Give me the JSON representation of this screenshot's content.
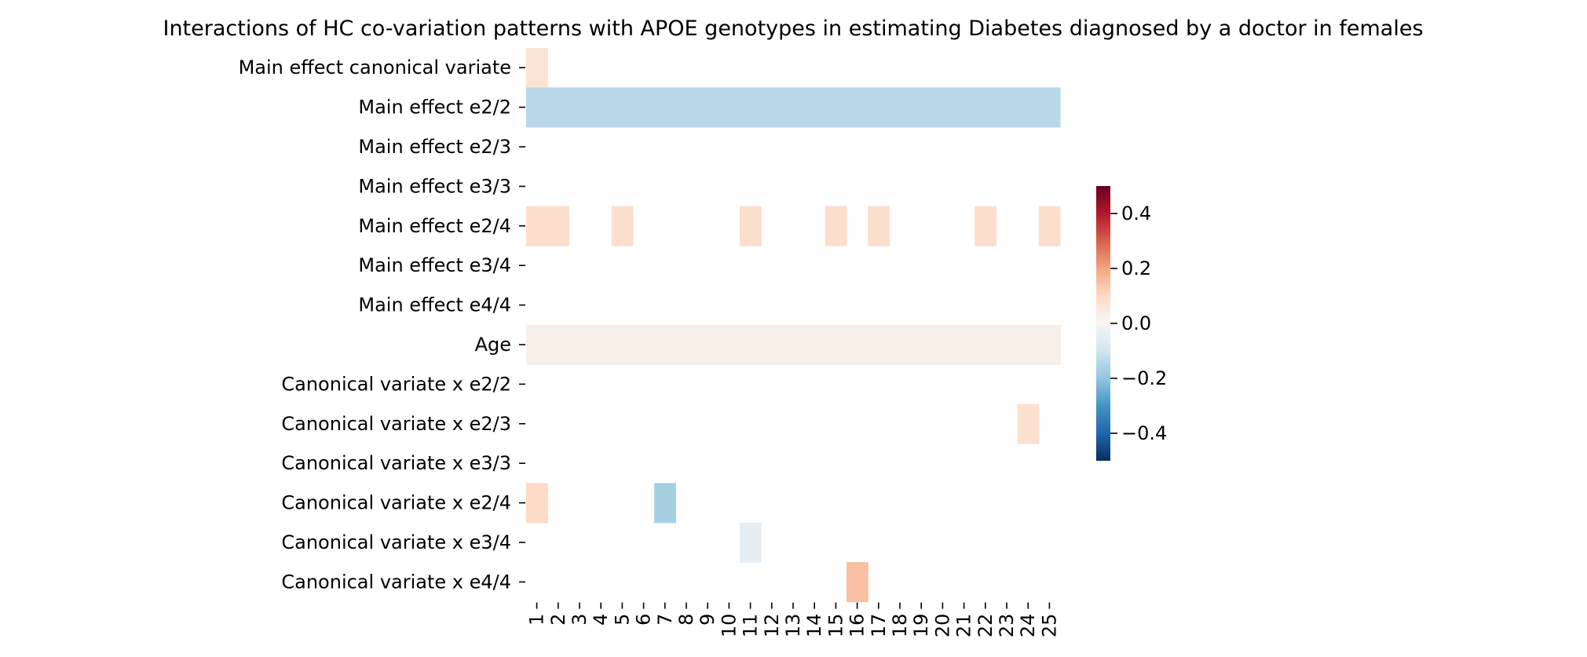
{
  "chart_data": {
    "type": "heatmap",
    "title": "Interactions of HC co-variation patterns with APOE genotypes in estimating Diabetes diagnosed by a doctor in females",
    "xlabel": "",
    "ylabel": "",
    "x_categories": [
      "1",
      "2",
      "3",
      "4",
      "5",
      "6",
      "7",
      "8",
      "9",
      "10",
      "11",
      "12",
      "13",
      "14",
      "15",
      "16",
      "17",
      "18",
      "19",
      "20",
      "21",
      "22",
      "23",
      "24",
      "25"
    ],
    "y_categories": [
      "Main effect canonical variate",
      "Main effect e2/2",
      "Main effect e2/3",
      "Main effect e3/3",
      "Main effect e2/4",
      "Main effect e3/4",
      "Main effect e4/4",
      "Age",
      "Canonical variate x e2/2",
      "Canonical variate x e2/3",
      "Canonical variate x e3/3",
      "Canonical variate x e2/4",
      "Canonical variate x e3/4",
      "Canonical variate x e4/4"
    ],
    "colormap": "RdBu_r",
    "color_range": [
      -0.5,
      0.5
    ],
    "colorbar_ticks": [
      0.4,
      0.2,
      0.0,
      -0.2,
      -0.4
    ],
    "colorbar_tick_labels": [
      "0.4",
      "0.2",
      "0.0",
      "−0.2",
      "−0.4"
    ],
    "cells": [
      {
        "row": 0,
        "col": 0,
        "value": 0.07
      },
      {
        "row": 1,
        "col": 0,
        "value": -0.14
      },
      {
        "row": 1,
        "col": 1,
        "value": -0.14
      },
      {
        "row": 1,
        "col": 2,
        "value": -0.14
      },
      {
        "row": 1,
        "col": 3,
        "value": -0.14
      },
      {
        "row": 1,
        "col": 4,
        "value": -0.14
      },
      {
        "row": 1,
        "col": 5,
        "value": -0.14
      },
      {
        "row": 1,
        "col": 6,
        "value": -0.14
      },
      {
        "row": 1,
        "col": 7,
        "value": -0.14
      },
      {
        "row": 1,
        "col": 8,
        "value": -0.14
      },
      {
        "row": 1,
        "col": 9,
        "value": -0.14
      },
      {
        "row": 1,
        "col": 10,
        "value": -0.14
      },
      {
        "row": 1,
        "col": 11,
        "value": -0.14
      },
      {
        "row": 1,
        "col": 12,
        "value": -0.14
      },
      {
        "row": 1,
        "col": 13,
        "value": -0.14
      },
      {
        "row": 1,
        "col": 14,
        "value": -0.14
      },
      {
        "row": 1,
        "col": 15,
        "value": -0.14
      },
      {
        "row": 1,
        "col": 16,
        "value": -0.14
      },
      {
        "row": 1,
        "col": 17,
        "value": -0.14
      },
      {
        "row": 1,
        "col": 18,
        "value": -0.14
      },
      {
        "row": 1,
        "col": 19,
        "value": -0.14
      },
      {
        "row": 1,
        "col": 20,
        "value": -0.14
      },
      {
        "row": 1,
        "col": 21,
        "value": -0.14
      },
      {
        "row": 1,
        "col": 22,
        "value": -0.14
      },
      {
        "row": 1,
        "col": 23,
        "value": -0.14
      },
      {
        "row": 1,
        "col": 24,
        "value": -0.14
      },
      {
        "row": 4,
        "col": 0,
        "value": 0.09
      },
      {
        "row": 4,
        "col": 1,
        "value": 0.09
      },
      {
        "row": 4,
        "col": 4,
        "value": 0.09
      },
      {
        "row": 4,
        "col": 10,
        "value": 0.09
      },
      {
        "row": 4,
        "col": 14,
        "value": 0.09
      },
      {
        "row": 4,
        "col": 16,
        "value": 0.09
      },
      {
        "row": 4,
        "col": 21,
        "value": 0.09
      },
      {
        "row": 4,
        "col": 24,
        "value": 0.09
      },
      {
        "row": 7,
        "col": 0,
        "value": 0.03
      },
      {
        "row": 7,
        "col": 1,
        "value": 0.03
      },
      {
        "row": 7,
        "col": 2,
        "value": 0.03
      },
      {
        "row": 7,
        "col": 3,
        "value": 0.03
      },
      {
        "row": 7,
        "col": 4,
        "value": 0.03
      },
      {
        "row": 7,
        "col": 5,
        "value": 0.03
      },
      {
        "row": 7,
        "col": 6,
        "value": 0.03
      },
      {
        "row": 7,
        "col": 7,
        "value": 0.03
      },
      {
        "row": 7,
        "col": 8,
        "value": 0.03
      },
      {
        "row": 7,
        "col": 9,
        "value": 0.03
      },
      {
        "row": 7,
        "col": 10,
        "value": 0.03
      },
      {
        "row": 7,
        "col": 11,
        "value": 0.03
      },
      {
        "row": 7,
        "col": 12,
        "value": 0.03
      },
      {
        "row": 7,
        "col": 13,
        "value": 0.03
      },
      {
        "row": 7,
        "col": 14,
        "value": 0.03
      },
      {
        "row": 7,
        "col": 15,
        "value": 0.03
      },
      {
        "row": 7,
        "col": 16,
        "value": 0.03
      },
      {
        "row": 7,
        "col": 17,
        "value": 0.03
      },
      {
        "row": 7,
        "col": 18,
        "value": 0.03
      },
      {
        "row": 7,
        "col": 19,
        "value": 0.03
      },
      {
        "row": 7,
        "col": 20,
        "value": 0.03
      },
      {
        "row": 7,
        "col": 21,
        "value": 0.03
      },
      {
        "row": 7,
        "col": 22,
        "value": 0.03
      },
      {
        "row": 7,
        "col": 23,
        "value": 0.03
      },
      {
        "row": 7,
        "col": 24,
        "value": 0.03
      },
      {
        "row": 9,
        "col": 23,
        "value": 0.08
      },
      {
        "row": 11,
        "col": 0,
        "value": 0.1
      },
      {
        "row": 11,
        "col": 6,
        "value": -0.17
      },
      {
        "row": 12,
        "col": 10,
        "value": -0.05
      },
      {
        "row": 13,
        "col": 15,
        "value": 0.15
      }
    ]
  }
}
